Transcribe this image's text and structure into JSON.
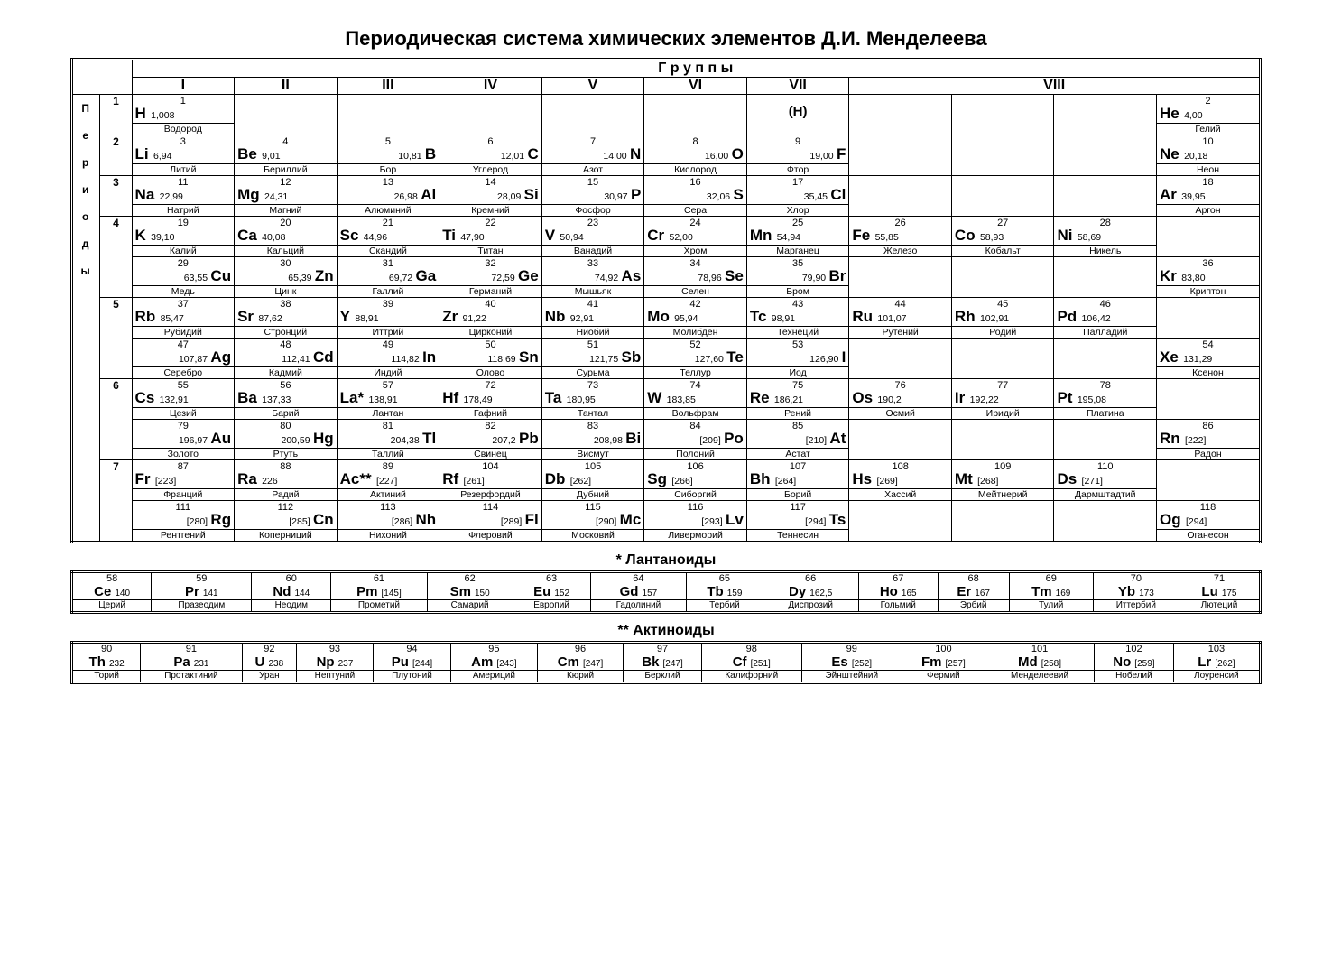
{
  "title": "Периодическая система химических элементов Д.И. Менделеева",
  "groups_label": "Г р у п п ы",
  "periods_label": "Периоды",
  "group_headings": [
    "I",
    "II",
    "III",
    "IV",
    "V",
    "VI",
    "VII",
    "VIII"
  ],
  "period_rows": [
    {
      "period": "1",
      "cells": [
        {
          "n": "1",
          "s": "H",
          "m": "1,008",
          "nm": "Водород",
          "align": "r"
        },
        null,
        null,
        null,
        null,
        null,
        {
          "txt": "(H)",
          "center": true
        },
        null,
        null,
        null,
        {
          "n": "2",
          "s": "He",
          "m": "4,00",
          "nm": "Гелий",
          "align": "r"
        }
      ]
    },
    {
      "period": "2",
      "cells": [
        {
          "n": "3",
          "s": "Li",
          "m": "6,94",
          "nm": "Литий",
          "align": "r"
        },
        {
          "n": "4",
          "s": "Be",
          "m": "9,01",
          "nm": "Бериллий",
          "align": "r"
        },
        {
          "n": "5",
          "s": "B",
          "m": "10,81",
          "nm": "Бор",
          "align": "l"
        },
        {
          "n": "6",
          "s": "C",
          "m": "12,01",
          "nm": "Углерод",
          "align": "l"
        },
        {
          "n": "7",
          "s": "N",
          "m": "14,00",
          "nm": "Азот",
          "align": "l"
        },
        {
          "n": "8",
          "s": "O",
          "m": "16,00",
          "nm": "Кислород",
          "align": "l"
        },
        {
          "n": "9",
          "s": "F",
          "m": "19,00",
          "nm": "Фтор",
          "align": "l"
        },
        null,
        null,
        null,
        {
          "n": "10",
          "s": "Ne",
          "m": "20,18",
          "nm": "Неон",
          "align": "r"
        }
      ]
    },
    {
      "period": "3",
      "cells": [
        {
          "n": "11",
          "s": "Na",
          "m": "22,99",
          "nm": "Натрий",
          "align": "r"
        },
        {
          "n": "12",
          "s": "Mg",
          "m": "24,31",
          "nm": "Магний",
          "align": "r"
        },
        {
          "n": "13",
          "s": "Al",
          "m": "26,98",
          "nm": "Алюминий",
          "align": "l"
        },
        {
          "n": "14",
          "s": "Si",
          "m": "28,09",
          "nm": "Кремний",
          "align": "l"
        },
        {
          "n": "15",
          "s": "P",
          "m": "30,97",
          "nm": "Фосфор",
          "align": "l"
        },
        {
          "n": "16",
          "s": "S",
          "m": "32,06",
          "nm": "Сера",
          "align": "l"
        },
        {
          "n": "17",
          "s": "Cl",
          "m": "35,45",
          "nm": "Хлор",
          "align": "l"
        },
        null,
        null,
        null,
        {
          "n": "18",
          "s": "Ar",
          "m": "39,95",
          "nm": "Аргон",
          "align": "r"
        }
      ]
    },
    {
      "period": "4a",
      "period_disp": "4",
      "cells": [
        {
          "n": "19",
          "s": "K",
          "m": "39,10",
          "nm": "Калий",
          "align": "r"
        },
        {
          "n": "20",
          "s": "Ca",
          "m": "40,08",
          "nm": "Кальций",
          "align": "r"
        },
        {
          "n": "21",
          "s": "Sc",
          "m": "44,96",
          "nm": "Скандий",
          "align": "r"
        },
        {
          "n": "22",
          "s": "Ti",
          "m": "47,90",
          "nm": "Титан",
          "align": "r"
        },
        {
          "n": "23",
          "s": "V",
          "m": "50,94",
          "nm": "Ванадий",
          "align": "r"
        },
        {
          "n": "24",
          "s": "Cr",
          "m": "52,00",
          "nm": "Хром",
          "align": "r"
        },
        {
          "n": "25",
          "s": "Mn",
          "m": "54,94",
          "nm": "Марганец",
          "align": "r"
        },
        {
          "n": "26",
          "s": "Fe",
          "m": "55,85",
          "nm": "Железо",
          "align": "r"
        },
        {
          "n": "27",
          "s": "Co",
          "m": "58,93",
          "nm": "Кобальт",
          "align": "r"
        },
        {
          "n": "28",
          "s": "Ni",
          "m": "58,69",
          "nm": "Никель",
          "align": "r"
        },
        null
      ]
    },
    {
      "period": "4b",
      "cells": [
        {
          "n": "29",
          "s": "Cu",
          "m": "63,55",
          "nm": "Медь",
          "align": "l"
        },
        {
          "n": "30",
          "s": "Zn",
          "m": "65,39",
          "nm": "Цинк",
          "align": "l"
        },
        {
          "n": "31",
          "s": "Ga",
          "m": "69,72",
          "nm": "Галлий",
          "align": "l"
        },
        {
          "n": "32",
          "s": "Ge",
          "m": "72,59",
          "nm": "Германий",
          "align": "l"
        },
        {
          "n": "33",
          "s": "As",
          "m": "74,92",
          "nm": "Мышьяк",
          "align": "l"
        },
        {
          "n": "34",
          "s": "Se",
          "m": "78,96",
          "nm": "Селен",
          "align": "l"
        },
        {
          "n": "35",
          "s": "Br",
          "m": "79,90",
          "nm": "Бром",
          "align": "l"
        },
        null,
        null,
        null,
        {
          "n": "36",
          "s": "Kr",
          "m": "83,80",
          "nm": "Криптон",
          "align": "r"
        }
      ]
    },
    {
      "period": "5a",
      "period_disp": "5",
      "cells": [
        {
          "n": "37",
          "s": "Rb",
          "m": "85,47",
          "nm": "Рубидий",
          "align": "r"
        },
        {
          "n": "38",
          "s": "Sr",
          "m": "87,62",
          "nm": "Стронций",
          "align": "r"
        },
        {
          "n": "39",
          "s": "Y",
          "m": "88,91",
          "nm": "Иттрий",
          "align": "r"
        },
        {
          "n": "40",
          "s": "Zr",
          "m": "91,22",
          "nm": "Цирконий",
          "align": "r"
        },
        {
          "n": "41",
          "s": "Nb",
          "m": "92,91",
          "nm": "Ниобий",
          "align": "r"
        },
        {
          "n": "42",
          "s": "Mo",
          "m": "95,94",
          "nm": "Молибден",
          "align": "r"
        },
        {
          "n": "43",
          "s": "Tc",
          "m": "98,91",
          "nm": "Технеций",
          "align": "r"
        },
        {
          "n": "44",
          "s": "Ru",
          "m": "101,07",
          "nm": "Рутений",
          "align": "r"
        },
        {
          "n": "45",
          "s": "Rh",
          "m": "102,91",
          "nm": "Родий",
          "align": "r"
        },
        {
          "n": "46",
          "s": "Pd",
          "m": "106,42",
          "nm": "Палладий",
          "align": "r"
        },
        null
      ]
    },
    {
      "period": "5b",
      "cells": [
        {
          "n": "47",
          "s": "Ag",
          "m": "107,87",
          "nm": "Серебро",
          "align": "l"
        },
        {
          "n": "48",
          "s": "Cd",
          "m": "112,41",
          "nm": "Кадмий",
          "align": "l"
        },
        {
          "n": "49",
          "s": "In",
          "m": "114,82",
          "nm": "Индий",
          "align": "l"
        },
        {
          "n": "50",
          "s": "Sn",
          "m": "118,69",
          "nm": "Олово",
          "align": "l"
        },
        {
          "n": "51",
          "s": "Sb",
          "m": "121,75",
          "nm": "Сурьма",
          "align": "l"
        },
        {
          "n": "52",
          "s": "Te",
          "m": "127,60",
          "nm": "Теллур",
          "align": "l"
        },
        {
          "n": "53",
          "s": "I",
          "m": "126,90",
          "nm": "Иод",
          "align": "l"
        },
        null,
        null,
        null,
        {
          "n": "54",
          "s": "Xe",
          "m": "131,29",
          "nm": "Ксенон",
          "align": "r"
        }
      ]
    },
    {
      "period": "6a",
      "period_disp": "6",
      "cells": [
        {
          "n": "55",
          "s": "Cs",
          "m": "132,91",
          "nm": "Цезий",
          "align": "r"
        },
        {
          "n": "56",
          "s": "Ba",
          "m": "137,33",
          "nm": "Барий",
          "align": "r"
        },
        {
          "n": "57",
          "s": "La*",
          "m": "138,91",
          "nm": "Лантан",
          "align": "r"
        },
        {
          "n": "72",
          "s": "Hf",
          "m": "178,49",
          "nm": "Гафний",
          "align": "r"
        },
        {
          "n": "73",
          "s": "Ta",
          "m": "180,95",
          "nm": "Тантал",
          "align": "r"
        },
        {
          "n": "74",
          "s": "W",
          "m": "183,85",
          "nm": "Вольфрам",
          "align": "r"
        },
        {
          "n": "75",
          "s": "Re",
          "m": "186,21",
          "nm": "Рений",
          "align": "r"
        },
        {
          "n": "76",
          "s": "Os",
          "m": "190,2",
          "nm": "Осмий",
          "align": "r"
        },
        {
          "n": "77",
          "s": "Ir",
          "m": "192,22",
          "nm": "Иридий",
          "align": "r"
        },
        {
          "n": "78",
          "s": "Pt",
          "m": "195,08",
          "nm": "Платина",
          "align": "r"
        },
        null
      ]
    },
    {
      "period": "6b",
      "cells": [
        {
          "n": "79",
          "s": "Au",
          "m": "196,97",
          "nm": "Золото",
          "align": "l"
        },
        {
          "n": "80",
          "s": "Hg",
          "m": "200,59",
          "nm": "Ртуть",
          "align": "l"
        },
        {
          "n": "81",
          "s": "Tl",
          "m": "204,38",
          "nm": "Таллий",
          "align": "l"
        },
        {
          "n": "82",
          "s": "Pb",
          "m": "207,2",
          "nm": "Свинец",
          "align": "l"
        },
        {
          "n": "83",
          "s": "Bi",
          "m": "208,98",
          "nm": "Висмут",
          "align": "l"
        },
        {
          "n": "84",
          "s": "Po",
          "m": "[209]",
          "nm": "Полоний",
          "align": "l"
        },
        {
          "n": "85",
          "s": "At",
          "m": "[210]",
          "nm": "Астат",
          "align": "l"
        },
        null,
        null,
        null,
        {
          "n": "86",
          "s": "Rn",
          "m": "[222]",
          "nm": "Радон",
          "align": "r"
        }
      ]
    },
    {
      "period": "7a",
      "period_disp": "7",
      "cells": [
        {
          "n": "87",
          "s": "Fr",
          "m": "[223]",
          "nm": "Франций",
          "align": "r"
        },
        {
          "n": "88",
          "s": "Ra",
          "m": "226",
          "nm": "Радий",
          "align": "r"
        },
        {
          "n": "89",
          "s": "Ac**",
          "m": "[227]",
          "nm": "Актиний",
          "align": "r"
        },
        {
          "n": "104",
          "s": "Rf",
          "m": "[261]",
          "nm": "Резерфордий",
          "align": "r"
        },
        {
          "n": "105",
          "s": "Db",
          "m": "[262]",
          "nm": "Дубний",
          "align": "r"
        },
        {
          "n": "106",
          "s": "Sg",
          "m": "[266]",
          "nm": "Сиборгий",
          "align": "r"
        },
        {
          "n": "107",
          "s": "Bh",
          "m": "[264]",
          "nm": "Борий",
          "align": "r"
        },
        {
          "n": "108",
          "s": "Hs",
          "m": "[269]",
          "nm": "Хассий",
          "align": "r"
        },
        {
          "n": "109",
          "s": "Mt",
          "m": "[268]",
          "nm": "Мейтнерий",
          "align": "r"
        },
        {
          "n": "110",
          "s": "Ds",
          "m": "[271]",
          "nm": "Дармштадтий",
          "align": "r"
        },
        null
      ]
    },
    {
      "period": "7b",
      "cells": [
        {
          "n": "111",
          "s": "Rg",
          "m": "[280]",
          "nm": "Рентгений",
          "align": "l"
        },
        {
          "n": "112",
          "s": "Cn",
          "m": "[285]",
          "nm": "Коперниций",
          "align": "l"
        },
        {
          "n": "113",
          "s": "Nh",
          "m": "[286]",
          "nm": "Нихоний",
          "align": "l"
        },
        {
          "n": "114",
          "s": "Fl",
          "m": "[289]",
          "nm": "Флеровий",
          "align": "l"
        },
        {
          "n": "115",
          "s": "Mc",
          "m": "[290]",
          "nm": "Московий",
          "align": "l"
        },
        {
          "n": "116",
          "s": "Lv",
          "m": "[293]",
          "nm": "Ливерморий",
          "align": "l"
        },
        {
          "n": "117",
          "s": "Ts",
          "m": "[294]",
          "nm": "Теннесин",
          "align": "l"
        },
        null,
        null,
        null,
        {
          "n": "118",
          "s": "Og",
          "m": "[294]",
          "nm": "Оганесон",
          "align": "r"
        }
      ]
    }
  ],
  "lanth_title": "* Лантаноиды",
  "lanthanides": [
    {
      "n": "58",
      "s": "Ce",
      "m": "140",
      "nm": "Церий"
    },
    {
      "n": "59",
      "s": "Pr",
      "m": "141",
      "nm": "Празеодим"
    },
    {
      "n": "60",
      "s": "Nd",
      "m": "144",
      "nm": "Неодим"
    },
    {
      "n": "61",
      "s": "Pm",
      "m": "[145]",
      "nm": "Прометий"
    },
    {
      "n": "62",
      "s": "Sm",
      "m": "150",
      "nm": "Самарий"
    },
    {
      "n": "63",
      "s": "Eu",
      "m": "152",
      "nm": "Европий"
    },
    {
      "n": "64",
      "s": "Gd",
      "m": "157",
      "nm": "Гадолиний"
    },
    {
      "n": "65",
      "s": "Tb",
      "m": "159",
      "nm": "Тербий"
    },
    {
      "n": "66",
      "s": "Dy",
      "m": "162,5",
      "nm": "Диспрозий"
    },
    {
      "n": "67",
      "s": "Ho",
      "m": "165",
      "nm": "Гольмий"
    },
    {
      "n": "68",
      "s": "Er",
      "m": "167",
      "nm": "Эрбий"
    },
    {
      "n": "69",
      "s": "Tm",
      "m": "169",
      "nm": "Тулий"
    },
    {
      "n": "70",
      "s": "Yb",
      "m": "173",
      "nm": "Иттербий"
    },
    {
      "n": "71",
      "s": "Lu",
      "m": "175",
      "nm": "Лютеций"
    }
  ],
  "act_title": "** Актиноиды",
  "actinides": [
    {
      "n": "90",
      "s": "Th",
      "m": "232",
      "nm": "Торий"
    },
    {
      "n": "91",
      "s": "Pa",
      "m": "231",
      "nm": "Протактиний"
    },
    {
      "n": "92",
      "s": "U",
      "m": "238",
      "nm": "Уран"
    },
    {
      "n": "93",
      "s": "Np",
      "m": "237",
      "nm": "Нептуний"
    },
    {
      "n": "94",
      "s": "Pu",
      "m": "[244]",
      "nm": "Плутоний"
    },
    {
      "n": "95",
      "s": "Am",
      "m": "[243]",
      "nm": "Америций"
    },
    {
      "n": "96",
      "s": "Cm",
      "m": "[247]",
      "nm": "Кюрий"
    },
    {
      "n": "97",
      "s": "Bk",
      "m": "[247]",
      "nm": "Берклий"
    },
    {
      "n": "98",
      "s": "Cf",
      "m": "[251]",
      "nm": "Калифорний"
    },
    {
      "n": "99",
      "s": "Es",
      "m": "[252]",
      "nm": "Эйнштейний"
    },
    {
      "n": "100",
      "s": "Fm",
      "m": "[257]",
      "nm": "Фермий"
    },
    {
      "n": "101",
      "s": "Md",
      "m": "[258]",
      "nm": "Менделеевий"
    },
    {
      "n": "102",
      "s": "No",
      "m": "[259]",
      "nm": "Нобелий"
    },
    {
      "n": "103",
      "s": "Lr",
      "m": "[262]",
      "nm": "Лоуренсий"
    }
  ],
  "periods_letters": [
    "П",
    "е",
    "р",
    "и",
    "о",
    "д",
    "ы"
  ]
}
